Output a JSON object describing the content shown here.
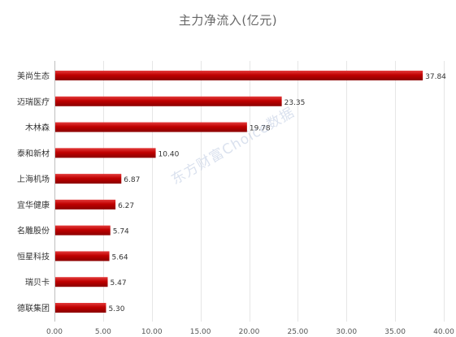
{
  "chart_data": {
    "type": "bar",
    "orientation": "horizontal",
    "title": "主力净流入(亿元)",
    "categories": [
      "美尚生态",
      "迈瑞医疗",
      "木林森",
      "泰和新材",
      "上海机场",
      "宜华健康",
      "名雕股份",
      "恒星科技",
      "瑞贝卡",
      "德联集团"
    ],
    "values": [
      37.84,
      23.35,
      19.78,
      10.4,
      6.87,
      6.27,
      5.74,
      5.64,
      5.47,
      5.3
    ],
    "value_labels": [
      "37.84",
      "23.35",
      "19.78",
      "10.40",
      "6.87",
      "6.27",
      "5.74",
      "5.64",
      "5.47",
      "5.30"
    ],
    "xticks": [
      "0.00",
      "5.00",
      "10.00",
      "15.00",
      "20.00",
      "25.00",
      "30.00",
      "35.00",
      "40.00"
    ],
    "xlim": [
      0,
      40
    ],
    "grid": true,
    "bar_color": "#c00000",
    "watermark": "东方财富Choice数据"
  }
}
